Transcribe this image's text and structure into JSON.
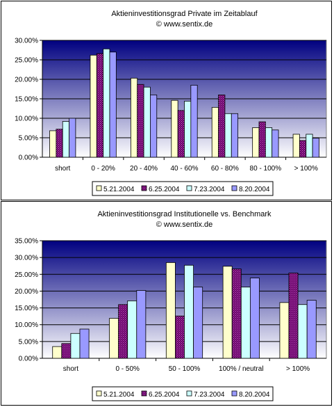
{
  "chart_data": [
    {
      "type": "bar",
      "title": "Aktieninvestitionsgrad Private im Zeitablauf",
      "subtitle": "© www.sentix.de",
      "categories": [
        "short",
        "0 - 20%",
        "20 - 40%",
        "40 - 60%",
        "60 - 80%",
        "80 - 100%",
        "> 100%"
      ],
      "ylim": [
        0,
        30
      ],
      "yticks": [
        "0.00%",
        "5.00%",
        "10.00%",
        "15.00%",
        "20.00%",
        "25.00%",
        "30.00%"
      ],
      "series": [
        {
          "name": "5.21.2004",
          "values": [
            6.8,
            26.2,
            20.3,
            14.6,
            12.8,
            7.6,
            5.9
          ]
        },
        {
          "name": "6.25.2004",
          "values": [
            7.2,
            26.6,
            18.7,
            12.0,
            16.0,
            9.1,
            4.3
          ]
        },
        {
          "name": "7.23.2004",
          "values": [
            9.2,
            27.8,
            18.0,
            14.4,
            11.2,
            7.6,
            5.9
          ]
        },
        {
          "name": "8.20.2004",
          "values": [
            10.0,
            27.0,
            16.0,
            18.5,
            11.2,
            7.0,
            4.9
          ]
        }
      ],
      "legend_position": "bottom",
      "grid": true
    },
    {
      "type": "bar",
      "title": "Aktieninvestitionsgrad Institutionelle vs. Benchmark",
      "subtitle": "© www.sentix.de",
      "categories": [
        "short",
        "0 - 50%",
        "50 - 100%",
        "100% / neutral",
        "> 100%"
      ],
      "ylim": [
        0,
        35
      ],
      "yticks": [
        "0.00%",
        "5.00%",
        "10.00%",
        "15.00%",
        "20.00%",
        "25.00%",
        "30.00%",
        "35.00%"
      ],
      "series": [
        {
          "name": "5.21.2004",
          "values": [
            3.5,
            11.9,
            28.5,
            27.4,
            16.6
          ]
        },
        {
          "name": "6.25.2004",
          "values": [
            4.4,
            16.0,
            12.6,
            26.6,
            25.4
          ]
        },
        {
          "name": "7.23.2004",
          "values": [
            7.4,
            17.1,
            27.7,
            21.2,
            16.0
          ]
        },
        {
          "name": "8.20.2004",
          "values": [
            8.7,
            20.2,
            21.2,
            23.9,
            17.3
          ]
        }
      ],
      "legend_position": "bottom",
      "grid": true
    }
  ],
  "colors": {
    "series": [
      "#ffffcc",
      "#660066",
      "#ccffff",
      "#9999ff"
    ],
    "plot_top": "#000080",
    "plot_bottom": "#ffffff"
  }
}
